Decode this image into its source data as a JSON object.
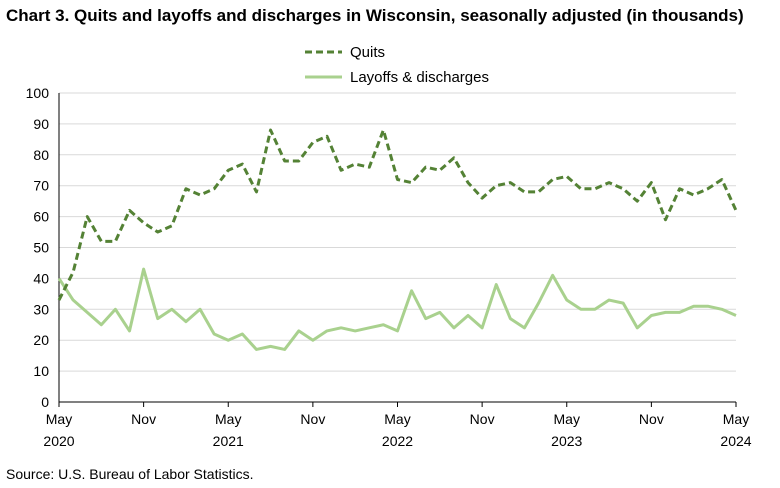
{
  "title": "Chart 3. Quits and layoffs and discharges in Wisconsin, seasonally adjusted (in thousands)",
  "source": "Source: U.S. Bureau of Labor Statistics.",
  "colors": {
    "quits": "#548235",
    "layoffs": "#a9d18e",
    "grid": "#d9d9d9",
    "axis": "#000000"
  },
  "chart_data": {
    "type": "line",
    "title": "Chart 3. Quits and layoffs and discharges in Wisconsin, seasonally adjusted (in thousands)",
    "xlabel": "",
    "ylabel": "",
    "ylim": [
      0,
      100
    ],
    "yticks": [
      0,
      10,
      20,
      30,
      40,
      50,
      60,
      70,
      80,
      90,
      100
    ],
    "grid": "horizontal",
    "legend_position": "top-center",
    "x": [
      "2020-05",
      "2020-06",
      "2020-07",
      "2020-08",
      "2020-09",
      "2020-10",
      "2020-11",
      "2020-12",
      "2021-01",
      "2021-02",
      "2021-03",
      "2021-04",
      "2021-05",
      "2021-06",
      "2021-07",
      "2021-08",
      "2021-09",
      "2021-10",
      "2021-11",
      "2021-12",
      "2022-01",
      "2022-02",
      "2022-03",
      "2022-04",
      "2022-05",
      "2022-06",
      "2022-07",
      "2022-08",
      "2022-09",
      "2022-10",
      "2022-11",
      "2022-12",
      "2023-01",
      "2023-02",
      "2023-03",
      "2023-04",
      "2023-05",
      "2023-06",
      "2023-07",
      "2023-08",
      "2023-09",
      "2023-10",
      "2023-11",
      "2023-12",
      "2024-01",
      "2024-02",
      "2024-03",
      "2024-04",
      "2024-05"
    ],
    "x_tick_labels": [
      {
        "month": "May",
        "year": "2020"
      },
      {
        "month": "Nov",
        "year": ""
      },
      {
        "month": "May",
        "year": "2021"
      },
      {
        "month": "Nov",
        "year": ""
      },
      {
        "month": "May",
        "year": "2022"
      },
      {
        "month": "Nov",
        "year": ""
      },
      {
        "month": "May",
        "year": "2023"
      },
      {
        "month": "Nov",
        "year": ""
      },
      {
        "month": "May",
        "year": "2024"
      }
    ],
    "series": [
      {
        "name": "Quits",
        "style": "dashed",
        "values": [
          33,
          42,
          60,
          52,
          52,
          62,
          58,
          55,
          57,
          69,
          67,
          69,
          75,
          77,
          68,
          88,
          78,
          78,
          84,
          86,
          75,
          77,
          76,
          88,
          72,
          71,
          76,
          75,
          79,
          71,
          66,
          70,
          71,
          68,
          68,
          72,
          73,
          69,
          69,
          71,
          69,
          65,
          71,
          59,
          69,
          67,
          69,
          72,
          62
        ]
      },
      {
        "name": "Layoffs & discharges",
        "style": "solid",
        "values": [
          40,
          33,
          29,
          25,
          30,
          23,
          43,
          27,
          30,
          26,
          30,
          22,
          20,
          22,
          17,
          18,
          17,
          23,
          20,
          23,
          24,
          23,
          24,
          25,
          23,
          36,
          27,
          29,
          24,
          28,
          24,
          38,
          27,
          24,
          32,
          41,
          33,
          30,
          30,
          33,
          32,
          24,
          28,
          29,
          29,
          31,
          31,
          30,
          28
        ]
      }
    ]
  }
}
